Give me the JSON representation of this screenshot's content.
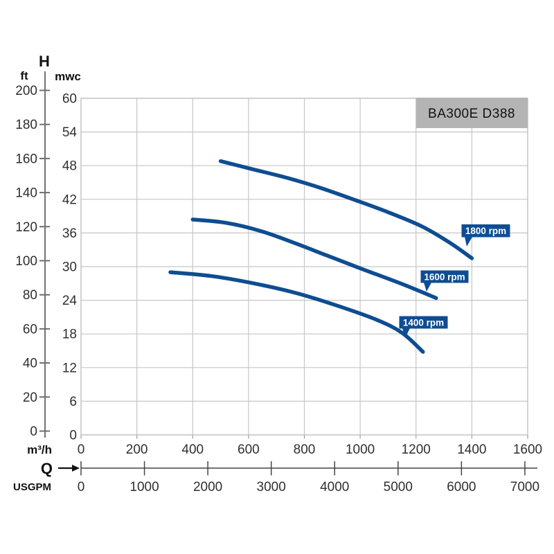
{
  "title_box": {
    "label": "BA300E D388",
    "bg": "#b4b4b4"
  },
  "colors": {
    "curve": "#0e4d91",
    "rpm_label_bg": "#0e4d91",
    "rpm_label_text": "#ffffff",
    "grid": "#c6c6c6",
    "axis": "#333333",
    "tick_text": "#2f2f2f"
  },
  "chart_data": {
    "type": "line",
    "title": "BA300E D388",
    "y_title": "H",
    "x_title": "Q",
    "grid": true,
    "legend": "curve-attached-labels",
    "y_axis_primary": {
      "label": "mwc",
      "min": 0,
      "max": 60,
      "ticks": [
        0,
        6,
        12,
        18,
        24,
        30,
        36,
        42,
        48,
        54,
        60
      ]
    },
    "y_axis_secondary": {
      "label": "ft",
      "min": 0,
      "max": 200,
      "ticks": [
        0,
        20,
        40,
        60,
        80,
        100,
        120,
        140,
        160,
        180,
        200
      ]
    },
    "x_axis_primary": {
      "label": "m³/h",
      "min": 0,
      "max": 1600,
      "ticks": [
        0,
        200,
        400,
        600,
        800,
        1000,
        1200,
        1400,
        1600
      ]
    },
    "x_axis_secondary": {
      "label": "USGPM",
      "min": 0,
      "max": 7000,
      "ticks": [
        0,
        1000,
        2000,
        3000,
        4000,
        5000,
        6000,
        7000
      ],
      "m3h_per_usgpm": 0.2271247
    },
    "series": [
      {
        "name": "1800 rpm",
        "points_m3h_mwc": [
          [
            500,
            48.8
          ],
          [
            620,
            47.3
          ],
          [
            740,
            45.8
          ],
          [
            860,
            44.0
          ],
          [
            980,
            41.9
          ],
          [
            1100,
            39.7
          ],
          [
            1220,
            37.2
          ],
          [
            1320,
            34.3
          ],
          [
            1400,
            31.5
          ]
        ]
      },
      {
        "name": "1600 rpm",
        "points_m3h_mwc": [
          [
            400,
            38.4
          ],
          [
            520,
            37.8
          ],
          [
            640,
            36.4
          ],
          [
            760,
            34.3
          ],
          [
            880,
            32.0
          ],
          [
            1000,
            29.7
          ],
          [
            1150,
            26.9
          ],
          [
            1272,
            24.4
          ]
        ]
      },
      {
        "name": "1400 rpm",
        "points_m3h_mwc": [
          [
            320,
            29.0
          ],
          [
            470,
            28.3
          ],
          [
            620,
            27.0
          ],
          [
            770,
            25.3
          ],
          [
            920,
            23.0
          ],
          [
            1060,
            20.5
          ],
          [
            1150,
            18.2
          ],
          [
            1225,
            14.8
          ]
        ]
      }
    ]
  }
}
